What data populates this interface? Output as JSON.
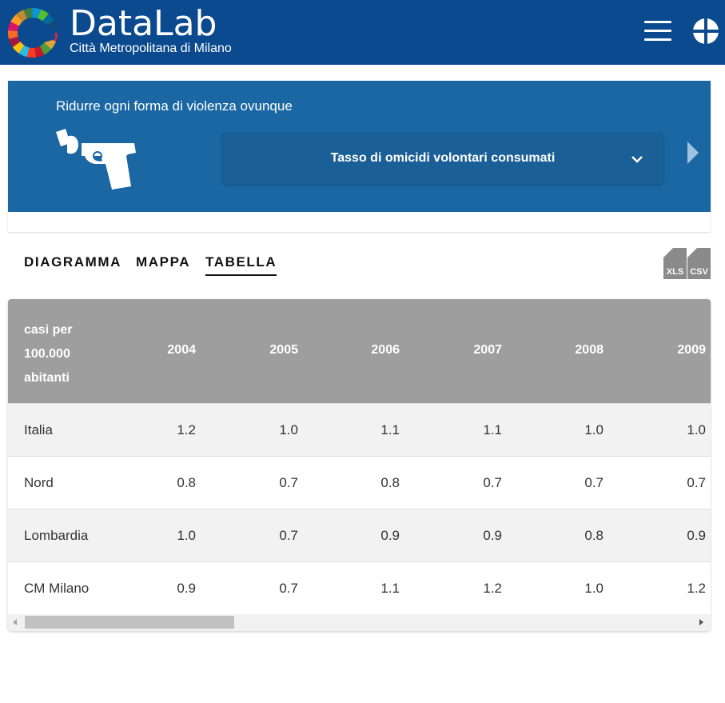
{
  "header": {
    "brand_title": "DataLab",
    "brand_subtitle": "Città Metropolitana di Milano",
    "menu_icon": "hamburger-menu-icon",
    "language_icon": "globe-icon",
    "colors": {
      "header_bg": "#0b4a8f"
    }
  },
  "banner": {
    "goal_text": "Ridurre ogni forma di violenza ovunque",
    "goal_icon": "gun-icon",
    "indicator_select": "Tasso di omicidi volontari consumati",
    "colors": {
      "banner_bg": "#1a67a3"
    }
  },
  "tabs": [
    {
      "label": "DIAGRAMMA",
      "active": false
    },
    {
      "label": "MAPPA",
      "active": false
    },
    {
      "label": "TABELLA",
      "active": true
    }
  ],
  "downloads": [
    {
      "label": "XLS",
      "icon": "file-xls-icon"
    },
    {
      "label": "CSV",
      "icon": "file-csv-icon"
    }
  ],
  "table": {
    "unit_header": [
      "casi per",
      "100.000",
      "abitanti"
    ],
    "years": [
      "2004",
      "2005",
      "2006",
      "2007",
      "2008",
      "2009"
    ],
    "rows": [
      {
        "name": "Italia",
        "values": [
          "1.2",
          "1.0",
          "1.1",
          "1.1",
          "1.0",
          "1.0"
        ]
      },
      {
        "name": "Nord",
        "values": [
          "0.8",
          "0.7",
          "0.8",
          "0.7",
          "0.7",
          "0.7"
        ]
      },
      {
        "name": "Lombardia",
        "values": [
          "1.0",
          "0.7",
          "0.9",
          "0.9",
          "0.8",
          "0.9"
        ]
      },
      {
        "name": "CM Milano",
        "values": [
          "0.9",
          "0.7",
          "1.1",
          "1.2",
          "1.0",
          "1.2"
        ]
      }
    ]
  }
}
